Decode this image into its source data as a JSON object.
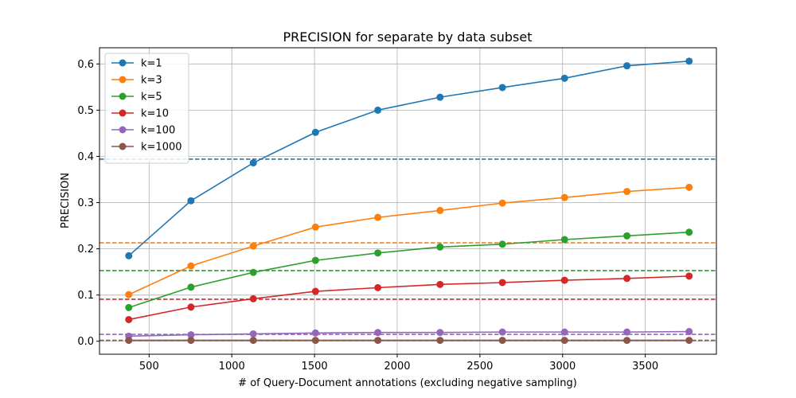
{
  "chart_data": {
    "type": "line",
    "title": "PRECISION for separate by data subset",
    "xlabel": "# of Query-Document annotations (excluding negative sampling)",
    "ylabel": "PRECISION",
    "xlim": [
      200,
      3930
    ],
    "ylim": [
      -0.028,
      0.635
    ],
    "xticks": [
      500,
      1000,
      1500,
      2000,
      2500,
      3000,
      3500
    ],
    "yticks": [
      0.0,
      0.1,
      0.2,
      0.3,
      0.4,
      0.5,
      0.6
    ],
    "grid": true,
    "legend_position": "top-left",
    "x": [
      377,
      753,
      1130,
      1506,
      1883,
      2259,
      2636,
      3012,
      3389,
      3765
    ],
    "series": [
      {
        "name": "k=1",
        "color": "#1f77b4",
        "values": [
          0.185,
          0.304,
          0.386,
          0.452,
          0.5,
          0.528,
          0.549,
          0.569,
          0.596,
          0.606
        ],
        "baseline": 0.394
      },
      {
        "name": "k=3",
        "color": "#ff7f0e",
        "values": [
          0.101,
          0.163,
          0.206,
          0.247,
          0.268,
          0.283,
          0.299,
          0.311,
          0.324,
          0.333
        ],
        "baseline": 0.213
      },
      {
        "name": "k=5",
        "color": "#2ca02c",
        "values": [
          0.073,
          0.117,
          0.149,
          0.175,
          0.191,
          0.204,
          0.21,
          0.22,
          0.228,
          0.236
        ],
        "baseline": 0.153
      },
      {
        "name": "k=10",
        "color": "#d62728",
        "values": [
          0.047,
          0.074,
          0.092,
          0.108,
          0.116,
          0.123,
          0.127,
          0.132,
          0.136,
          0.141
        ],
        "baseline": 0.091
      },
      {
        "name": "k=100",
        "color": "#9467bd",
        "values": [
          0.011,
          0.014,
          0.016,
          0.018,
          0.019,
          0.019,
          0.02,
          0.02,
          0.02,
          0.021
        ],
        "baseline": 0.015
      },
      {
        "name": "k=1000",
        "color": "#8c564b",
        "values": [
          0.002,
          0.002,
          0.002,
          0.002,
          0.002,
          0.002,
          0.002,
          0.002,
          0.002,
          0.002
        ],
        "baseline": 0.002
      }
    ]
  }
}
